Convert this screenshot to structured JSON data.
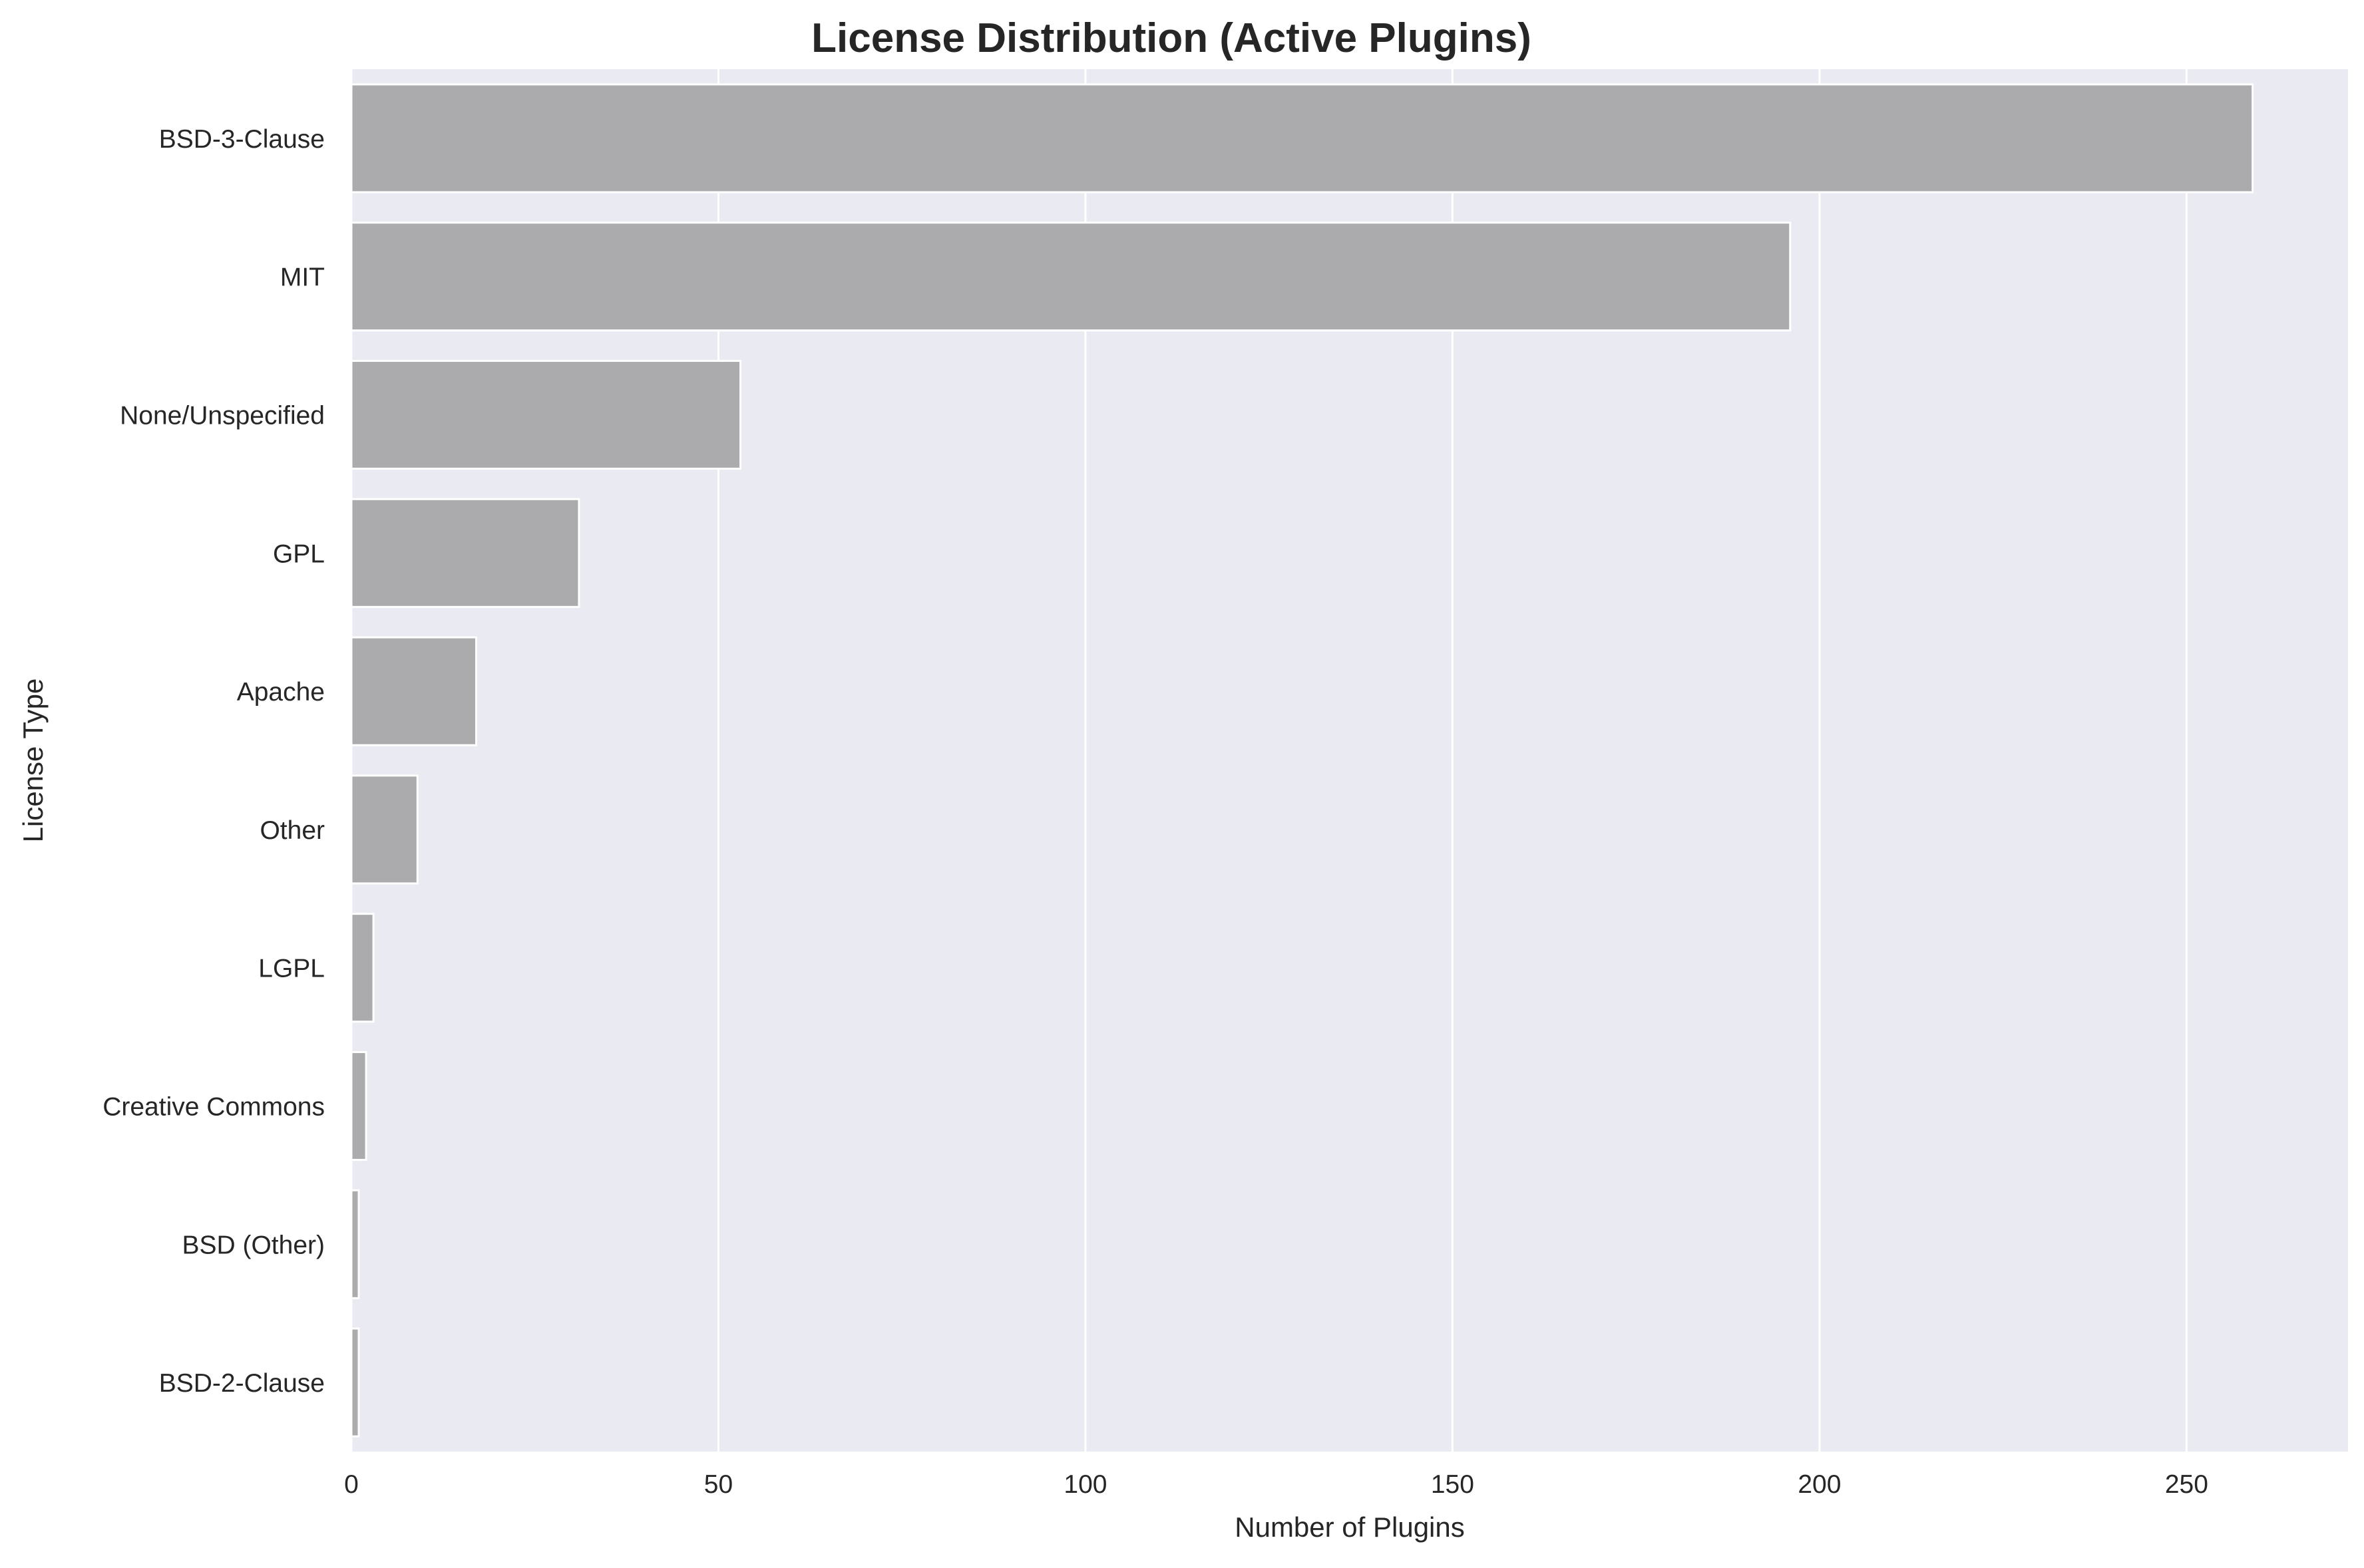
{
  "chart_data": {
    "type": "bar",
    "orientation": "horizontal",
    "title": "License Distribution (Active Plugins)",
    "xlabel": "Number of Plugins",
    "ylabel": "License Type",
    "categories": [
      "BSD-3-Clause",
      "MIT",
      "None/Unspecified",
      "GPL",
      "Apache",
      "Other",
      "LGPL",
      "Creative Commons",
      "BSD (Other)",
      "BSD-2-Clause"
    ],
    "values": [
      259,
      196,
      53,
      31,
      17,
      9,
      3,
      2,
      1,
      1
    ],
    "xlim": [
      0,
      272
    ],
    "xticks": [
      0,
      50,
      100,
      150,
      200,
      250
    ],
    "grid": true,
    "colors": {
      "bar": "#ababad",
      "bar_edge": "#ffffff",
      "plot_background": "#eaeaf2",
      "grid": "#ffffff",
      "text": "#262626"
    }
  }
}
